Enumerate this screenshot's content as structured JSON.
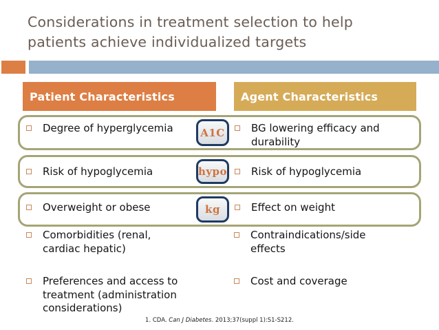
{
  "slide": {
    "title_line1": "Considerations in treatment selection to help",
    "title_line2": "patients achieve individualized targets",
    "footer": {
      "prefix": "1. CDA. ",
      "journal": "Can J Diabetes",
      "suffix": ". 2013;37(suppl 1):S1-S212."
    }
  },
  "columns": {
    "patient": {
      "header": "Patient Characteristics"
    },
    "agent": {
      "header": "Agent Characteristics"
    }
  },
  "rows": [
    {
      "left": "Degree of hyperglycemia",
      "badge": "A1C",
      "right": "BG lowering efficacy and durability"
    },
    {
      "left": "Risk of hypoglycemia",
      "badge": "hypo",
      "right": "Risk of hypoglycemia"
    },
    {
      "left": "Overweight or obese",
      "badge": "kg",
      "right": "Effect on weight"
    },
    {
      "left": "Comorbidities (renal, cardiac hepatic)",
      "right": "Contraindications/side effects"
    },
    {
      "left": "Preferences and access to treatment (administration considerations)",
      "right": "Cost and coverage"
    }
  ],
  "colors": {
    "accent_orange": "#DD7E44",
    "header_gold": "#D5AB58",
    "accent_blue": "#95B1CB",
    "box_border_olive": "#A5A476",
    "badge_border_navy": "#1F3A63",
    "badge_text_orange": "#CE7340",
    "bullet_orange": "#C8875A",
    "title_text": "#6A5D55",
    "body_text": "#141414"
  }
}
